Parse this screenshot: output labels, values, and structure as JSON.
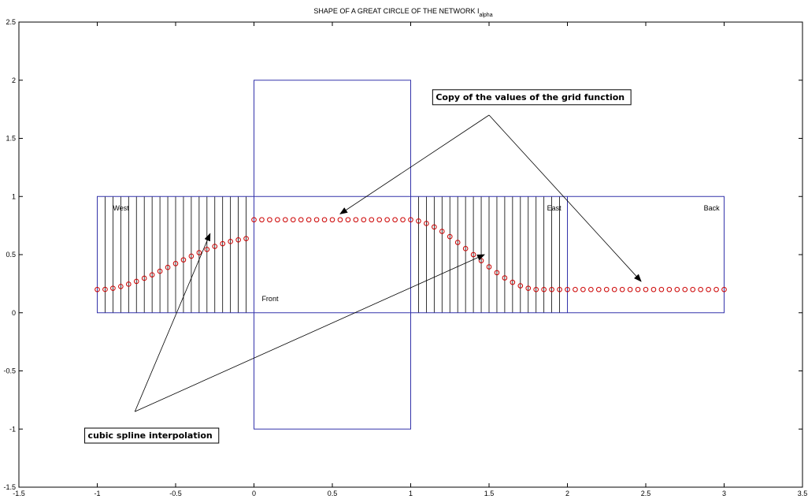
{
  "chart_data": {
    "type": "scatter",
    "title": "SHAPE OF A GREAT CIRCLE OF THE NETWORK I",
    "title_subscript": "alpha",
    "xlabel": "",
    "ylabel": "",
    "xlim": [
      -1.5,
      3.5
    ],
    "ylim": [
      -1.5,
      2.5
    ],
    "grid": false,
    "x_ticks": [
      {
        "value": -1.5,
        "label": "-1.5"
      },
      {
        "value": -1,
        "label": "-1"
      },
      {
        "value": -0.5,
        "label": "-0.5"
      },
      {
        "value": 0,
        "label": "0"
      },
      {
        "value": 0.5,
        "label": "0.5"
      },
      {
        "value": 1,
        "label": "1"
      },
      {
        "value": 1.5,
        "label": "1.5"
      },
      {
        "value": 2,
        "label": "2"
      },
      {
        "value": 2.5,
        "label": "2.5"
      },
      {
        "value": 3,
        "label": "3"
      },
      {
        "value": 3.5,
        "label": "3.5"
      }
    ],
    "y_ticks": [
      {
        "value": -1.5,
        "label": "-1.5"
      },
      {
        "value": -1,
        "label": "-1"
      },
      {
        "value": -0.5,
        "label": "-0.5"
      },
      {
        "value": 0,
        "label": "0"
      },
      {
        "value": 0.5,
        "label": "0.5"
      },
      {
        "value": 1,
        "label": "1"
      },
      {
        "value": 1.5,
        "label": "1.5"
      },
      {
        "value": 2,
        "label": "2"
      },
      {
        "value": 2.5,
        "label": "2.5"
      }
    ],
    "rectangles": [
      {
        "name": "strip",
        "x": [
          -1,
          3
        ],
        "y": [
          0,
          1
        ],
        "color": "#3333aa"
      },
      {
        "name": "front-face",
        "x": [
          0,
          1
        ],
        "y": [
          -1,
          2
        ],
        "color": "#3333aa"
      },
      {
        "name": "east-back-divider",
        "x": [
          2,
          2
        ],
        "y": [
          0,
          1
        ],
        "color": "#3333aa"
      }
    ],
    "grid_lines_x": [
      -0.95,
      -0.9,
      -0.85,
      -0.8,
      -0.75,
      -0.7,
      -0.65,
      -0.6,
      -0.55,
      -0.5,
      -0.45,
      -0.4,
      -0.35,
      -0.3,
      -0.25,
      -0.2,
      -0.15,
      -0.1,
      -0.05,
      1.05,
      1.1,
      1.15,
      1.2,
      1.25,
      1.3,
      1.35,
      1.4,
      1.45,
      1.5,
      1.55,
      1.6,
      1.65,
      1.7,
      1.75,
      1.8,
      1.85,
      1.9,
      1.95
    ],
    "region_labels": [
      {
        "text": "West",
        "x": -0.9,
        "y": 0.88
      },
      {
        "text": "East",
        "x": 1.87,
        "y": 0.88
      },
      {
        "text": "Back",
        "x": 2.87,
        "y": 0.88
      },
      {
        "text": "Front",
        "x": 0.05,
        "y": 0.1
      }
    ],
    "series": [
      {
        "marker": "circle",
        "color": "#cc0000",
        "x": [
          -1,
          -0.95,
          -0.9,
          -0.85,
          -0.8,
          -0.75,
          -0.7,
          -0.65,
          -0.6,
          -0.55,
          -0.5,
          -0.45,
          -0.4,
          -0.35,
          -0.3,
          -0.25,
          -0.2,
          -0.15,
          -0.1,
          -0.05,
          0,
          0.05,
          0.1,
          0.15,
          0.2,
          0.25,
          0.3,
          0.35,
          0.4,
          0.45,
          0.5,
          0.55,
          0.6,
          0.65,
          0.7,
          0.75,
          0.8,
          0.85,
          0.9,
          0.95,
          1,
          1.05,
          1.1,
          1.15,
          1.2,
          1.25,
          1.3,
          1.35,
          1.4,
          1.45,
          1.5,
          1.55,
          1.6,
          1.65,
          1.7,
          1.75,
          1.8,
          1.85,
          1.9,
          1.95,
          2,
          2.05,
          2.1,
          2.15,
          2.2,
          2.25,
          2.3,
          2.35,
          2.4,
          2.45,
          2.5,
          2.55,
          2.6,
          2.65,
          2.7,
          2.75,
          2.8,
          2.85,
          2.9,
          2.95,
          3
        ],
        "y": [
          0.2,
          0.201,
          0.211,
          0.226,
          0.246,
          0.27,
          0.297,
          0.326,
          0.357,
          0.39,
          0.423,
          0.455,
          0.487,
          0.517,
          0.545,
          0.571,
          0.594,
          0.613,
          0.627,
          0.638,
          0.8,
          0.8,
          0.8,
          0.8,
          0.8,
          0.8,
          0.8,
          0.8,
          0.8,
          0.8,
          0.8,
          0.8,
          0.8,
          0.8,
          0.8,
          0.8,
          0.8,
          0.8,
          0.8,
          0.8,
          0.8,
          0.789,
          0.768,
          0.738,
          0.7,
          0.655,
          0.605,
          0.552,
          0.5,
          0.448,
          0.395,
          0.345,
          0.3,
          0.262,
          0.232,
          0.211,
          0.2,
          0.2,
          0.2,
          0.2,
          0.2,
          0.2,
          0.2,
          0.2,
          0.2,
          0.2,
          0.2,
          0.2,
          0.2,
          0.2,
          0.2,
          0.2,
          0.2,
          0.2,
          0.2,
          0.2,
          0.2,
          0.2,
          0.2,
          0.2,
          0.2
        ]
      }
    ],
    "annotations": [
      {
        "text": "Copy of the values of the grid function",
        "box": true,
        "text_pos": {
          "x": 1.16,
          "y": 1.83
        },
        "arrow_origin": {
          "x": 1.5,
          "y": 1.7
        },
        "arrows": [
          {
            "to_x": 0.55,
            "to_y": 0.85
          },
          {
            "to_x": 2.47,
            "to_y": 0.27
          }
        ]
      },
      {
        "text": "cubic spline interpolation",
        "box": true,
        "text_pos": {
          "x": -1.06,
          "y": -1.08
        },
        "arrow_origin": {
          "x": -0.76,
          "y": -0.85
        },
        "arrows": [
          {
            "to_x": -0.28,
            "to_y": 0.68
          },
          {
            "to_x": 1.47,
            "to_y": 0.5
          }
        ]
      }
    ]
  }
}
